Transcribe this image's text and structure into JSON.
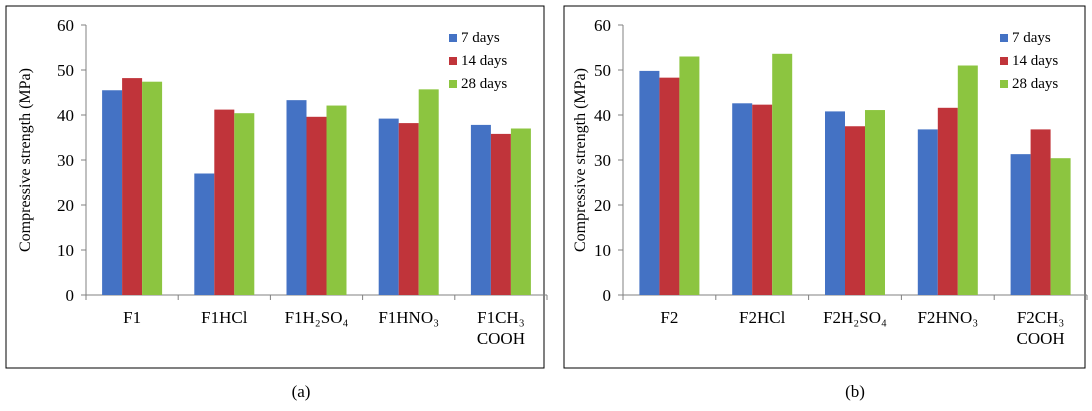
{
  "chart_data": [
    {
      "type": "bar",
      "caption": "(a)",
      "ylabel": "Compressive strength (MPa)",
      "ylim": [
        0,
        60
      ],
      "yticks": [
        0,
        10,
        20,
        30,
        40,
        50,
        60
      ],
      "grid": false,
      "legend_position": "top-right",
      "categories": [
        [
          "F1"
        ],
        [
          "F1HCl"
        ],
        [
          "F1H₂SO₄"
        ],
        [
          "F1HNO₃"
        ],
        [
          "F1CH₃",
          "COOH"
        ]
      ],
      "series": [
        {
          "name": "7 days",
          "color": "#4472C4",
          "values": [
            45.5,
            27,
            43.3,
            39.2,
            37.8
          ]
        },
        {
          "name": "14 days",
          "color": "#C0343A",
          "values": [
            48.2,
            41.2,
            39.6,
            38.2,
            35.8
          ]
        },
        {
          "name": "28 days",
          "color": "#8CC540",
          "values": [
            47.4,
            40.4,
            42.1,
            45.7,
            37
          ]
        }
      ]
    },
    {
      "type": "bar",
      "caption": "(b)",
      "ylabel": "Compressive strength (MPa)",
      "ylim": [
        0,
        60
      ],
      "yticks": [
        0,
        10,
        20,
        30,
        40,
        50,
        60
      ],
      "grid": false,
      "legend_position": "top-right",
      "categories": [
        [
          "F2"
        ],
        [
          "F2HCl"
        ],
        [
          "F2H₂SO₄"
        ],
        [
          "F2HNO₃"
        ],
        [
          "F2CH₃",
          "COOH"
        ]
      ],
      "series": [
        {
          "name": "7 days",
          "color": "#4472C4",
          "values": [
            49.8,
            42.6,
            40.8,
            36.8,
            31.3
          ]
        },
        {
          "name": "14 days",
          "color": "#C0343A",
          "values": [
            48.3,
            42.3,
            37.5,
            41.6,
            36.8
          ]
        },
        {
          "name": "28 days",
          "color": "#8CC540",
          "values": [
            53,
            53.6,
            41.1,
            51,
            30.4
          ]
        }
      ]
    }
  ]
}
